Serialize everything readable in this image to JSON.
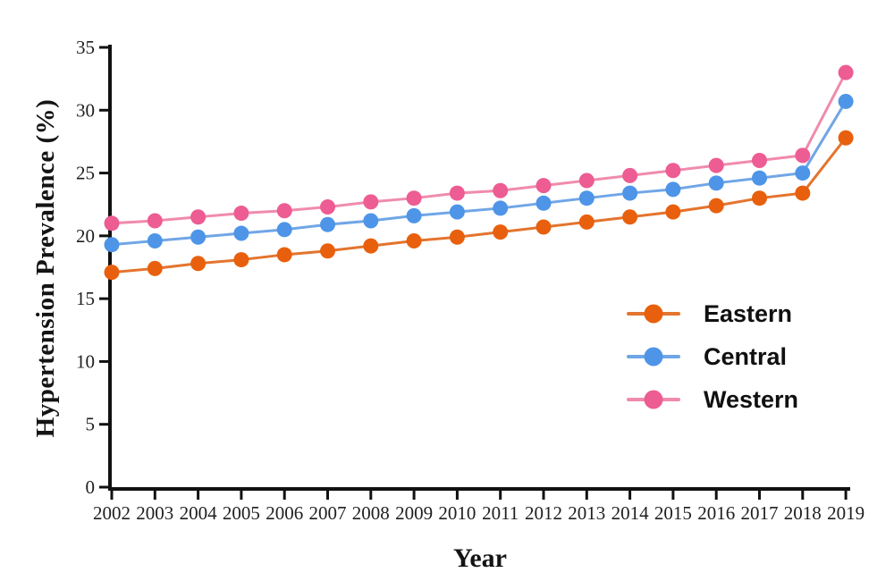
{
  "figure": {
    "background": "#ffffff",
    "axis_color": "#111111",
    "tick_label_color": "#1f1f1f"
  },
  "chart_data": {
    "type": "line",
    "title": "",
    "xlabel": "Year",
    "ylabel": "Hypertension Prevalence (%)",
    "grid": false,
    "legend_position": "inside-right",
    "ylim": [
      0,
      35
    ],
    "yticks": [
      0,
      5,
      10,
      15,
      20,
      25,
      30,
      35
    ],
    "x": [
      2002,
      2003,
      2004,
      2005,
      2006,
      2007,
      2008,
      2009,
      2010,
      2011,
      2012,
      2013,
      2014,
      2015,
      2016,
      2017,
      2018,
      2019
    ],
    "series": [
      {
        "name": "Eastern",
        "marker_color": "#E8600D",
        "line_color": "#E4742E",
        "values": [
          17.1,
          17.4,
          17.8,
          18.1,
          18.5,
          18.8,
          19.2,
          19.6,
          19.9,
          20.3,
          20.7,
          21.1,
          21.5,
          21.9,
          22.4,
          23.0,
          23.4,
          27.8
        ]
      },
      {
        "name": "Central",
        "marker_color": "#4E95E8",
        "line_color": "#70A6E6",
        "values": [
          19.3,
          19.6,
          19.9,
          20.2,
          20.5,
          20.9,
          21.2,
          21.6,
          21.9,
          22.2,
          22.6,
          23.0,
          23.4,
          23.7,
          24.2,
          24.6,
          25.0,
          30.7
        ]
      },
      {
        "name": "Western",
        "marker_color": "#ED5C92",
        "line_color": "#F08BAC",
        "values": [
          21.0,
          21.2,
          21.5,
          21.8,
          22.0,
          22.3,
          22.7,
          23.0,
          23.4,
          23.6,
          24.0,
          24.4,
          24.8,
          25.2,
          25.6,
          26.0,
          26.4,
          33.0
        ]
      }
    ]
  }
}
